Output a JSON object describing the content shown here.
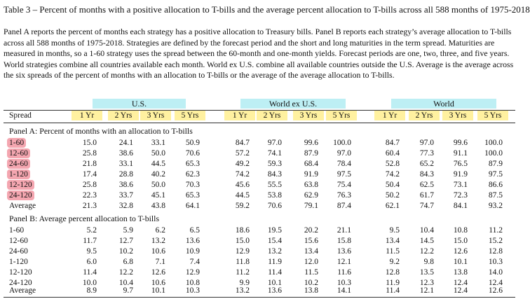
{
  "title": "Table 3 – Percent of months with a positive allocation to T-bills and the average percent allocation to T-bills across all 588 months of 1975-2018",
  "description": "Panel A reports the percent of months each strategy has a positive allocation to Treasury bills. Panel B reports each strategy’s average allocation to T-bills across all 588 months of 1975-2018. Strategies are defined by the forecast period and the short and long maturities in the term spread. Maturities are measured in months, so a 1-60 strategy uses the spread between the 60-month and one-month yields. Forecast periods are one, two, three, and five years. World strategies combine all countries available each month. World ex U.S. combine all available countries outside the U.S. Average is the average across the six spreads of the percent of months with an allocation to T-bills or the average of the average allocation to T-bills.",
  "regions": [
    "U.S.",
    "World ex U.S.",
    "World"
  ],
  "spread_header": "Spread",
  "periods": [
    "1 Yr",
    "2 Yrs",
    "3 Yrs",
    "5 Yrs"
  ],
  "panel_a": {
    "title": "Panel A: Percent of months with an allocation to T-bills",
    "rows": [
      {
        "label": "1-60",
        "values": [
          "15.0",
          "24.1",
          "33.1",
          "50.9",
          "84.7",
          "97.0",
          "99.6",
          "100.0",
          "84.7",
          "97.0",
          "99.6",
          "100.0"
        ]
      },
      {
        "label": "12-60",
        "values": [
          "25.8",
          "38.6",
          "50.0",
          "70.6",
          "57.2",
          "74.1",
          "87.9",
          "97.0",
          "60.4",
          "77.3",
          "91.1",
          "100.0"
        ]
      },
      {
        "label": "24-60",
        "values": [
          "21.8",
          "33.1",
          "44.5",
          "65.3",
          "49.2",
          "59.3",
          "68.4",
          "78.4",
          "52.8",
          "65.2",
          "76.5",
          "87.9"
        ]
      },
      {
        "label": "1-120",
        "values": [
          "17.4",
          "28.8",
          "40.2",
          "62.3",
          "74.2",
          "84.3",
          "91.9",
          "97.5",
          "74.2",
          "84.3",
          "91.9",
          "97.5"
        ]
      },
      {
        "label": "12-120",
        "values": [
          "25.8",
          "38.6",
          "50.0",
          "70.3",
          "45.6",
          "55.5",
          "63.8",
          "75.4",
          "50.4",
          "62.5",
          "73.1",
          "86.6"
        ]
      },
      {
        "label": "24-120",
        "values": [
          "22.3",
          "33.7",
          "45.1",
          "65.3",
          "44.5",
          "53.8",
          "62.9",
          "76.3",
          "50.2",
          "61.7",
          "72.3",
          "87.5"
        ]
      }
    ],
    "average": {
      "label": "Average",
      "values": [
        "21.3",
        "32.8",
        "43.8",
        "64.1",
        "59.2",
        "70.6",
        "79.1",
        "87.4",
        "62.1",
        "74.7",
        "84.1",
        "93.2"
      ]
    }
  },
  "panel_b": {
    "title": "Panel B: Average percent allocation to T-bills",
    "rows": [
      {
        "label": "1-60",
        "values": [
          "5.2",
          "5.9",
          "6.2",
          "6.5",
          "18.6",
          "19.5",
          "20.2",
          "21.1",
          "9.5",
          "10.4",
          "10.8",
          "11.2"
        ]
      },
      {
        "label": "12-60",
        "values": [
          "11.7",
          "12.7",
          "13.2",
          "13.6",
          "15.0",
          "15.4",
          "15.6",
          "15.8",
          "13.4",
          "14.5",
          "15.0",
          "15.2"
        ]
      },
      {
        "label": "24-60",
        "values": [
          "9.5",
          "10.2",
          "10.6",
          "10.9",
          "12.9",
          "13.2",
          "13.4",
          "13.6",
          "11.5",
          "12.2",
          "12.6",
          "12.8"
        ]
      },
      {
        "label": "1-120",
        "values": [
          "6.0",
          "6.8",
          "7.1",
          "7.4",
          "11.8",
          "11.9",
          "12.0",
          "12.1",
          "9.2",
          "9.8",
          "10.1",
          "10.3"
        ]
      },
      {
        "label": "12-120",
        "values": [
          "11.4",
          "12.2",
          "12.6",
          "12.9",
          "11.2",
          "11.4",
          "11.5",
          "11.6",
          "12.8",
          "13.5",
          "13.8",
          "14.0"
        ]
      },
      {
        "label": "24-120",
        "values": [
          "10.0",
          "10.4",
          "10.6",
          "10.8",
          "9.9",
          "10.1",
          "10.2",
          "10.3",
          "11.9",
          "12.3",
          "12.4",
          "12.4"
        ]
      }
    ],
    "average": {
      "label": "Average",
      "values": [
        "8.9",
        "9.7",
        "10.1",
        "10.3",
        "13.2",
        "13.6",
        "13.8",
        "14.1",
        "11.4",
        "12.1",
        "12.4",
        "12.6"
      ]
    }
  },
  "highlight_colors": {
    "region": "#bdeff4",
    "period": "#fff1a0",
    "spread": "#f4a6b0"
  }
}
